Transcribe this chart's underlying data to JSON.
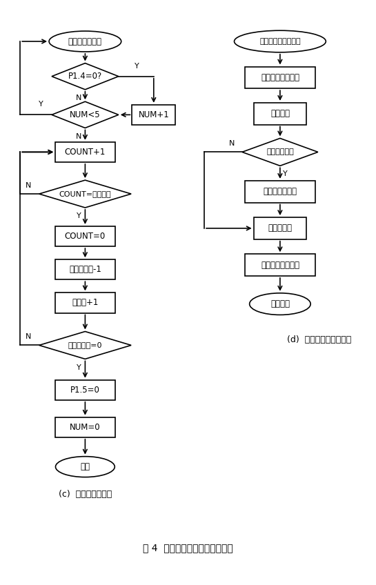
{
  "title": "图 4  用户端单片机系统程序程序",
  "left_title": "(c)  电度计数子程序",
  "right_title": "(d)  串行中断服务子程序",
  "bg_color": "#ffffff",
  "line_color": "#000000",
  "text_color": "#000000",
  "left_nodes": {
    "start_label": "电度计数子程序",
    "d1_label": "P1.4=0?",
    "d2_label": "NUM<5",
    "b1_label": "COUNT+1",
    "d3_label": "COUNT=电表常数",
    "b2_label": "COUNT=0",
    "b3_label": "剩余电度数-1",
    "b4_label": "用电量+1",
    "d4_label": "剩余电度数=0",
    "b5_label": "P1.5=0",
    "b6_label": "NUM=0",
    "end_label": "返回",
    "num_plus_label": "NUM+1"
  },
  "right_nodes": {
    "start_label": "串行中断服务子程序",
    "b1_label": "关中断，保护现场",
    "b2_label": "接收字符",
    "d1_label": "用户编号认证",
    "b3_label": "发送剩余电度数",
    "b4_label": "发送用电量",
    "b5_label": "开中断，恢复现场",
    "end_label": "中断返回"
  }
}
